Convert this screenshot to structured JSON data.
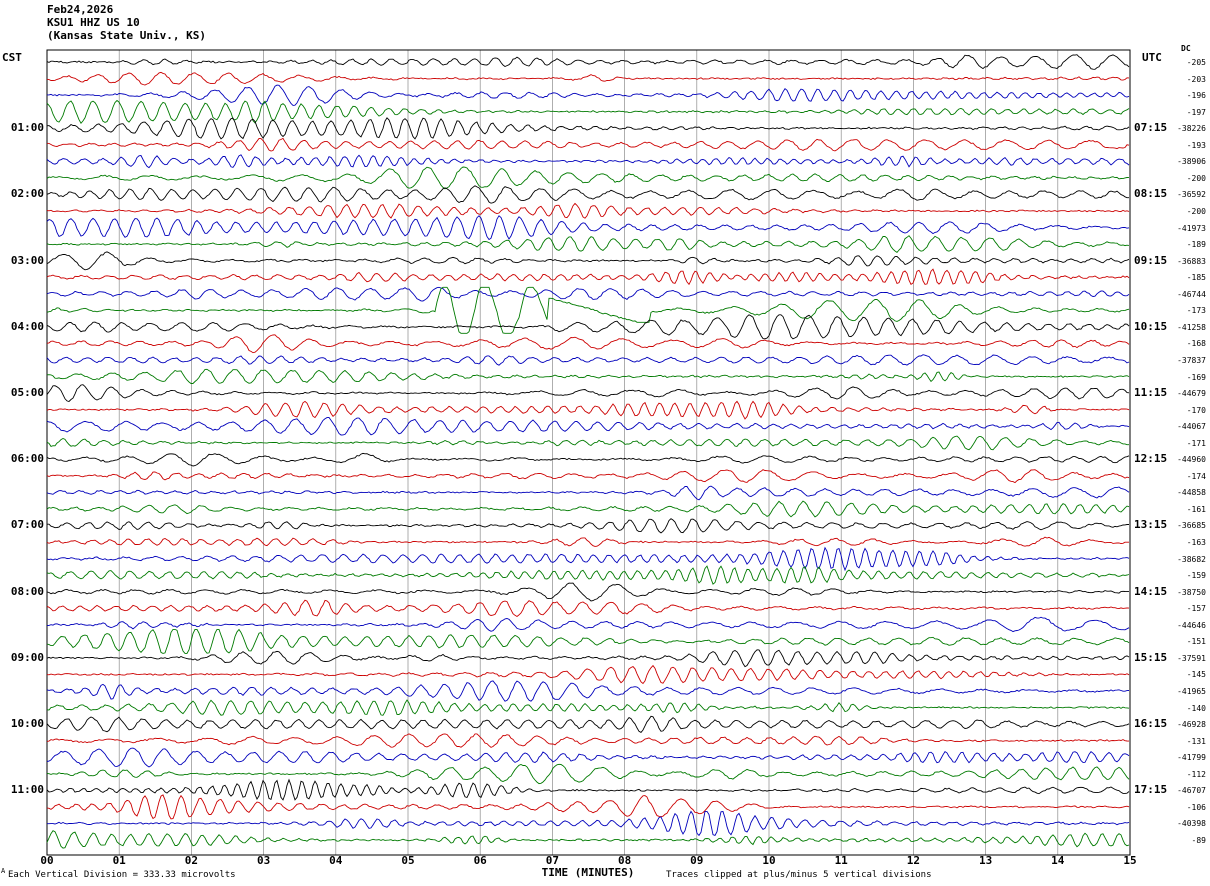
{
  "header": {
    "line1": "Feb24,2026",
    "line2": "KSU1 HHZ US 10",
    "line3": "(Kansas State Univ., KS)"
  },
  "axes": {
    "left_timezone": "CST",
    "right_timezone": "UTC",
    "dc_column_header": "DC",
    "x_axis_label": "TIME (MINUTES)",
    "x_ticks": [
      "00",
      "01",
      "02",
      "03",
      "04",
      "05",
      "06",
      "07",
      "08",
      "09",
      "10",
      "11",
      "12",
      "13",
      "14",
      "15"
    ]
  },
  "footer": {
    "marker": "A",
    "left": "Each Vertical Division =  333.33 microvolts",
    "right": "Traces clipped at plus/minus 5 vertical divisions"
  },
  "colors": {
    "background": "#ffffff",
    "grid": "#8c8c8c",
    "border": "#000000",
    "traces": {
      "black": "#000000",
      "red": "#cc0000",
      "blue": "#0000bb",
      "green": "#007a00"
    }
  },
  "chart_data": {
    "type": "line",
    "subtype": "helicorder-seismogram",
    "station": "KSU1 HHZ US 10",
    "rows": 48,
    "minutes_per_row": 15,
    "x_range_minutes": [
      0,
      15
    ],
    "grid": {
      "vertical_lines_every_minute": true
    },
    "trace_color_cycle": [
      "black",
      "red",
      "blue",
      "green"
    ],
    "left_hour_labels": [
      {
        "row": 4,
        "label": "01:00"
      },
      {
        "row": 8,
        "label": "02:00"
      },
      {
        "row": 12,
        "label": "03:00"
      },
      {
        "row": 16,
        "label": "04:00"
      },
      {
        "row": 20,
        "label": "05:00"
      },
      {
        "row": 24,
        "label": "06:00"
      },
      {
        "row": 28,
        "label": "07:00"
      },
      {
        "row": 32,
        "label": "08:00"
      },
      {
        "row": 36,
        "label": "09:00"
      },
      {
        "row": 40,
        "label": "10:00"
      },
      {
        "row": 44,
        "label": "11:00"
      }
    ],
    "right_hour_labels": [
      {
        "row": 4,
        "label": "07:15"
      },
      {
        "row": 8,
        "label": "08:15"
      },
      {
        "row": 12,
        "label": "09:15"
      },
      {
        "row": 16,
        "label": "10:15"
      },
      {
        "row": 20,
        "label": "11:15"
      },
      {
        "row": 24,
        "label": "12:15"
      },
      {
        "row": 28,
        "label": "13:15"
      },
      {
        "row": 32,
        "label": "14:15"
      },
      {
        "row": 36,
        "label": "15:15"
      },
      {
        "row": 40,
        "label": "16:15"
      },
      {
        "row": 44,
        "label": "17:15"
      }
    ],
    "dc_values": [
      -205,
      -203,
      -196,
      -197,
      -38226,
      -193,
      -38906,
      -200,
      -36592,
      -200,
      -41973,
      -189,
      -36883,
      -185,
      -46744,
      -173,
      -41258,
      -168,
      -37837,
      -169,
      -44679,
      -170,
      -44067,
      -171,
      -44960,
      -174,
      -44858,
      -161,
      -36685,
      -163,
      -38682,
      -159,
      -38750,
      -157,
      -44646,
      -151,
      -37591,
      -145,
      -41965,
      -140,
      -46928,
      -131,
      -41799,
      -112,
      -46707,
      -106,
      -40398,
      -89
    ],
    "event": {
      "row": 15,
      "start_minute": 5.4,
      "end_minute": 8.3,
      "description": "High-amplitude clipped burst on the green trace of the 03:45 CST line (minutes ~5.4-6.9), followed by a drifting diagonal recovery ramp to ~minute 8.3"
    },
    "note": "Background traces are ambient microseismic noise; individual sample values are not resolvable at screenshot scale."
  }
}
